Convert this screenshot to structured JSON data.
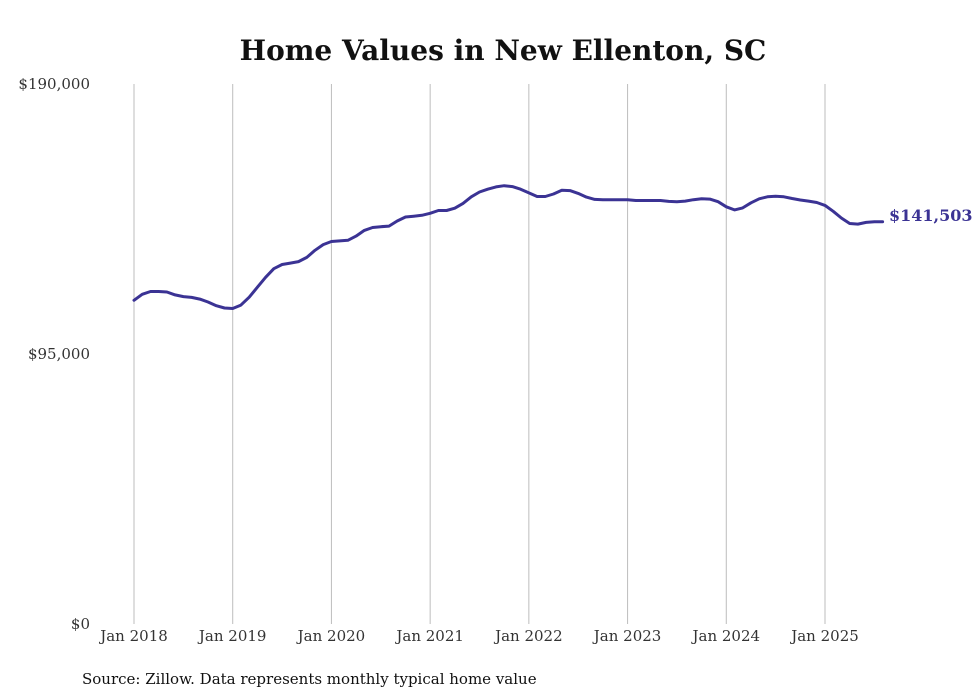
{
  "chart_data": {
    "type": "line",
    "title": "Home Values in New Ellenton, SC",
    "source": "Source: Zillow. Data represents monthly typical home value",
    "ylim": [
      0,
      190000
    ],
    "y_ticks": [
      {
        "value": 0,
        "label": "$0"
      },
      {
        "value": 95000,
        "label": "$95,000"
      },
      {
        "value": 190000,
        "label": "$190,000"
      }
    ],
    "x_ticks": [
      {
        "value": "2018-01",
        "label": "Jan 2018"
      },
      {
        "value": "2019-01",
        "label": "Jan 2019"
      },
      {
        "value": "2020-01",
        "label": "Jan 2020"
      },
      {
        "value": "2021-01",
        "label": "Jan 2021"
      },
      {
        "value": "2022-01",
        "label": "Jan 2022"
      },
      {
        "value": "2023-01",
        "label": "Jan 2023"
      },
      {
        "value": "2024-01",
        "label": "Jan 2024"
      },
      {
        "value": "2025-01",
        "label": "Jan 2025"
      }
    ],
    "grid": "vertical",
    "color": "#3b3394",
    "end_label": "$141,503",
    "series": [
      {
        "values": [
          [
            "2018-01",
            113900
          ],
          [
            "2018-02",
            116000
          ],
          [
            "2018-03",
            117000
          ],
          [
            "2018-04",
            117000
          ],
          [
            "2018-05",
            116800
          ],
          [
            "2018-06",
            115800
          ],
          [
            "2018-07",
            115200
          ],
          [
            "2018-08",
            114900
          ],
          [
            "2018-09",
            114300
          ],
          [
            "2018-10",
            113300
          ],
          [
            "2018-11",
            112000
          ],
          [
            "2018-12",
            111200
          ],
          [
            "2019-01",
            111000
          ],
          [
            "2019-02",
            112200
          ],
          [
            "2019-03",
            115000
          ],
          [
            "2019-04",
            118500
          ],
          [
            "2019-05",
            122000
          ],
          [
            "2019-06",
            125000
          ],
          [
            "2019-07",
            126500
          ],
          [
            "2019-08",
            127000
          ],
          [
            "2019-09",
            127500
          ],
          [
            "2019-10",
            129000
          ],
          [
            "2019-11",
            131500
          ],
          [
            "2019-12",
            133500
          ],
          [
            "2020-01",
            134600
          ],
          [
            "2020-02",
            134800
          ],
          [
            "2020-03",
            135000
          ],
          [
            "2020-04",
            136500
          ],
          [
            "2020-05",
            138500
          ],
          [
            "2020-06",
            139500
          ],
          [
            "2020-07",
            139800
          ],
          [
            "2020-08",
            140000
          ],
          [
            "2020-09",
            141800
          ],
          [
            "2020-10",
            143200
          ],
          [
            "2020-11",
            143500
          ],
          [
            "2020-12",
            143800
          ],
          [
            "2021-01",
            144500
          ],
          [
            "2021-02",
            145500
          ],
          [
            "2021-03",
            145500
          ],
          [
            "2021-04",
            146300
          ],
          [
            "2021-05",
            148000
          ],
          [
            "2021-06",
            150300
          ],
          [
            "2021-07",
            152000
          ],
          [
            "2021-08",
            153000
          ],
          [
            "2021-09",
            153800
          ],
          [
            "2021-10",
            154200
          ],
          [
            "2021-11",
            153900
          ],
          [
            "2021-12",
            153000
          ],
          [
            "2022-01",
            151700
          ],
          [
            "2022-02",
            150400
          ],
          [
            "2022-03",
            150400
          ],
          [
            "2022-04",
            151300
          ],
          [
            "2022-05",
            152600
          ],
          [
            "2022-06",
            152500
          ],
          [
            "2022-07",
            151500
          ],
          [
            "2022-08",
            150200
          ],
          [
            "2022-09",
            149400
          ],
          [
            "2022-10",
            149300
          ],
          [
            "2022-11",
            149300
          ],
          [
            "2022-12",
            149300
          ],
          [
            "2023-01",
            149300
          ],
          [
            "2023-02",
            149000
          ],
          [
            "2023-03",
            149000
          ],
          [
            "2023-04",
            149000
          ],
          [
            "2023-05",
            149000
          ],
          [
            "2023-06",
            148700
          ],
          [
            "2023-07",
            148600
          ],
          [
            "2023-08",
            148800
          ],
          [
            "2023-09",
            149300
          ],
          [
            "2023-10",
            149600
          ],
          [
            "2023-11",
            149500
          ],
          [
            "2023-12",
            148600
          ],
          [
            "2024-01",
            146800
          ],
          [
            "2024-02",
            145700
          ],
          [
            "2024-03",
            146400
          ],
          [
            "2024-04",
            148200
          ],
          [
            "2024-05",
            149600
          ],
          [
            "2024-06",
            150300
          ],
          [
            "2024-07",
            150500
          ],
          [
            "2024-08",
            150300
          ],
          [
            "2024-09",
            149700
          ],
          [
            "2024-10",
            149200
          ],
          [
            "2024-11",
            148800
          ],
          [
            "2024-12",
            148300
          ],
          [
            "2025-01",
            147300
          ],
          [
            "2025-02",
            145200
          ],
          [
            "2025-03",
            142800
          ],
          [
            "2025-04",
            140900
          ],
          [
            "2025-05",
            140700
          ],
          [
            "2025-06",
            141300
          ],
          [
            "2025-07",
            141503
          ],
          [
            "2025-08",
            141503
          ]
        ]
      }
    ]
  }
}
